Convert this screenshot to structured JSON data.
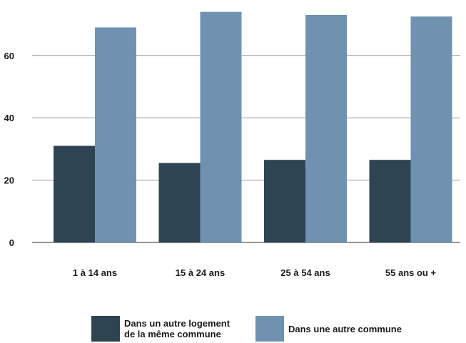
{
  "chart_data": {
    "type": "bar",
    "categories": [
      "1 à 14 ans",
      "15 à 24 ans",
      "25 à 54 ans",
      "55 ans ou +"
    ],
    "series": [
      {
        "name_lines": [
          "Dans un autre logement",
          "de la même commune"
        ],
        "color": "#2f4453",
        "values": [
          31,
          25.5,
          26.5,
          26.5
        ]
      },
      {
        "name": "Dans une autre commune",
        "color": "#6f92b0",
        "values": [
          69,
          74,
          73,
          72.5
        ]
      }
    ],
    "y_ticks": [
      "0",
      "20",
      "40",
      "60"
    ],
    "ylim": [
      0,
      75
    ],
    "grid": true,
    "legend_position": "bottom"
  }
}
